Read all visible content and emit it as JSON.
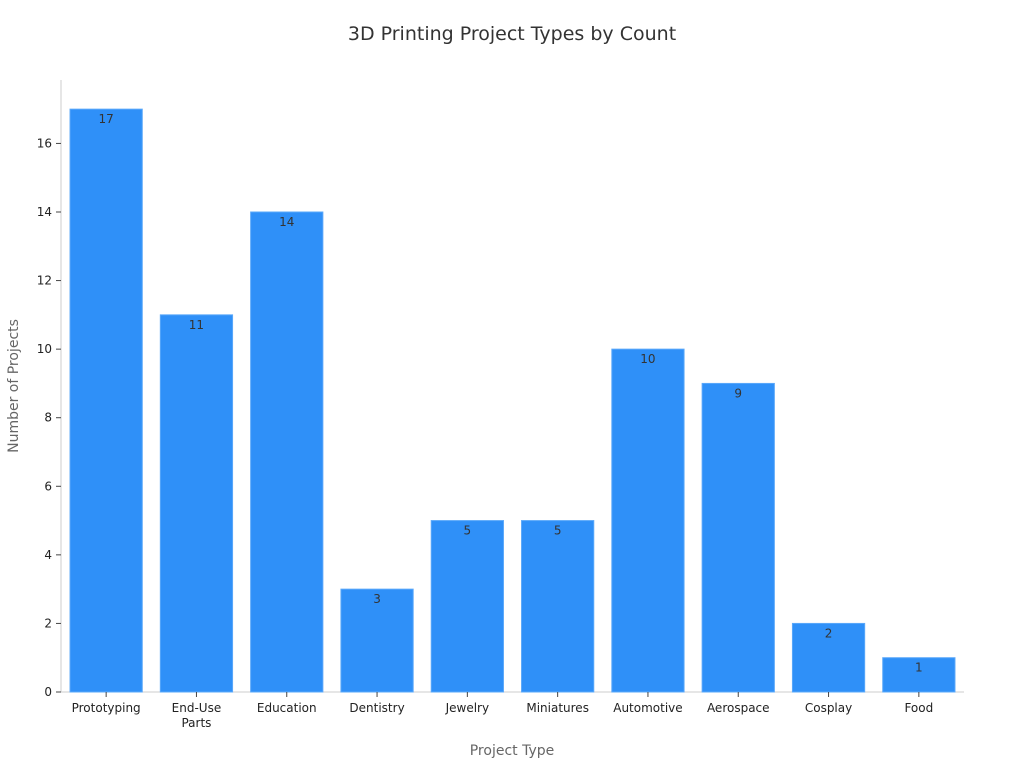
{
  "chart_data": {
    "type": "bar",
    "title": "3D Printing Project Types by Count",
    "xlabel": "Project Type",
    "ylabel": "Number of Projects",
    "categories": [
      "Prototyping",
      "End-Use Parts",
      "Education",
      "Dentistry",
      "Jewelry",
      "Miniatures",
      "Automotive",
      "Aerospace",
      "Cosplay",
      "Food"
    ],
    "values": [
      17,
      11,
      14,
      3,
      5,
      5,
      10,
      9,
      2,
      1
    ],
    "ylim": [
      0,
      17.85
    ],
    "yticks": [
      0,
      2,
      4,
      6,
      8,
      10,
      12,
      14,
      16
    ],
    "grid": false,
    "bar_color": "#2f90f8",
    "data_labels": true
  }
}
